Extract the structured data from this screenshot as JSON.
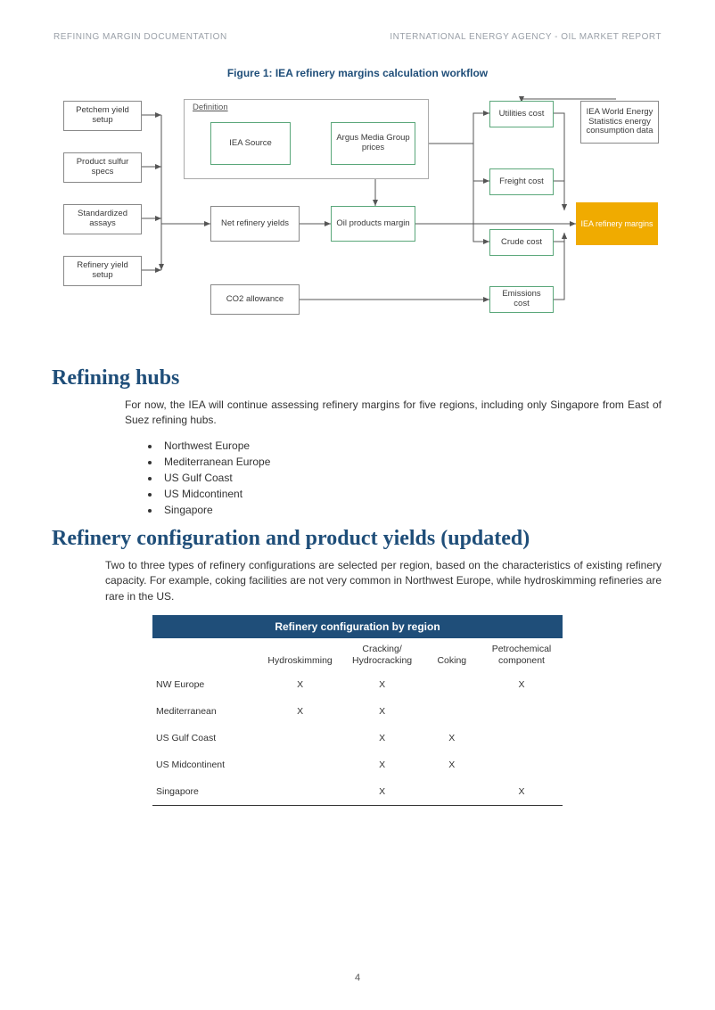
{
  "header": {
    "left": "REFINING MARGIN DOCUMENTATION",
    "right": "INTERNATIONAL ENERGY AGENCY - OIL MARKET REPORT"
  },
  "figure": {
    "title": "Figure 1: IEA refinery margins calculation workflow",
    "definition_label": "Definition",
    "nodes": {
      "petchem": "Petchem yield setup",
      "sulfur": "Product sulfur specs",
      "assays": "Standardized assays",
      "refyield": "Refinery yield setup",
      "iea_source": "IEA Source",
      "argus": "Argus Media Group prices",
      "net_yields": "Net refinery yields",
      "oil_margin": "Oil products margin",
      "co2": "CO2 allowance",
      "utilities": "Utilities cost",
      "freight": "Freight cost",
      "crude": "Crude cost",
      "emissions": "Emissions cost",
      "stats": "IEA World Energy Statistics energy consumption data",
      "output": "IEA refinery margins"
    },
    "colors": {
      "node_border": "#888888",
      "green_border": "#5aa77a",
      "output_bg": "#f0ab00",
      "output_text": "#ffffff",
      "arrow": "#555555"
    }
  },
  "sections": {
    "hubs_title": "Refining hubs",
    "hubs_body": "For now, the IEA will continue assessing refinery margins for five regions, including only Singapore from East of Suez refining hubs.",
    "hubs_list": [
      "Northwest Europe",
      "Mediterranean Europe",
      "US Gulf Coast",
      "US Midcontinent",
      "Singapore"
    ],
    "config_title": "Refinery configuration and product yields (updated)",
    "config_body": "Two to three types of refinery configurations are selected per region, based on the characteristics of existing refinery capacity. For example, coking facilities are not very common in Northwest Europe, while hydroskimming refineries are rare in the US."
  },
  "table": {
    "title": "Refinery configuration by region",
    "columns": [
      "",
      "Hydroskimming",
      "Cracking/\nHydrocracking",
      "Coking",
      "Petrochemical\ncomponent"
    ],
    "rows": [
      [
        "NW Europe",
        "X",
        "X",
        "",
        "X"
      ],
      [
        "Mediterranean",
        "X",
        "X",
        "",
        ""
      ],
      [
        "US Gulf Coast",
        "",
        "X",
        "X",
        ""
      ],
      [
        "US Midcontinent",
        "",
        "X",
        "X",
        ""
      ],
      [
        "Singapore",
        "",
        "X",
        "",
        "X"
      ]
    ]
  },
  "page_number": "4"
}
